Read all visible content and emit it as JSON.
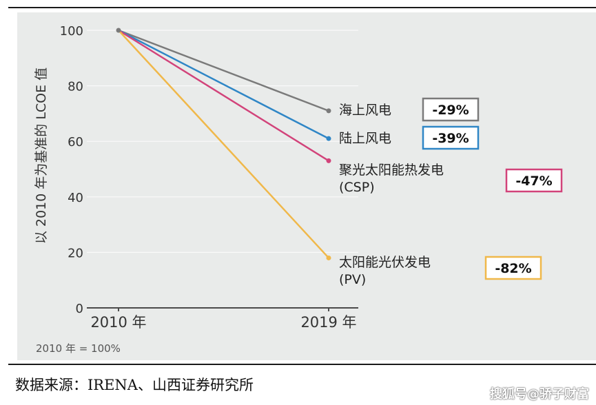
{
  "chart_data": {
    "type": "line",
    "title": "",
    "ylabel": "以 2010 年为基准的 LCOE 值",
    "xlabel": "",
    "categories": [
      "2010 年",
      "2019 年"
    ],
    "yticks": [
      0,
      20,
      40,
      60,
      80,
      100
    ],
    "ylim": [
      0,
      100
    ],
    "grid": true,
    "legend": "end-labels-right",
    "series": [
      {
        "name": "海上风电",
        "name_line2": "",
        "values": [
          100,
          71
        ],
        "change_label": "-29%",
        "color": "#7a7a7a"
      },
      {
        "name": "陆上风电",
        "name_line2": "",
        "values": [
          100,
          61
        ],
        "change_label": "-39%",
        "color": "#2f86c6"
      },
      {
        "name": "聚光太阳能热发电",
        "name_line2": "(CSP)",
        "values": [
          100,
          53
        ],
        "change_label": "-47%",
        "color": "#d2437a"
      },
      {
        "name": "太阳能光伏发电",
        "name_line2": "(PV)",
        "values": [
          100,
          18
        ],
        "change_label": "-82%",
        "color": "#f0b84a"
      }
    ],
    "note": "2010 年 = 100%"
  },
  "source": "数据来源：IRENA、山西证券研究所",
  "watermark": "搜狐号@骄子财富"
}
